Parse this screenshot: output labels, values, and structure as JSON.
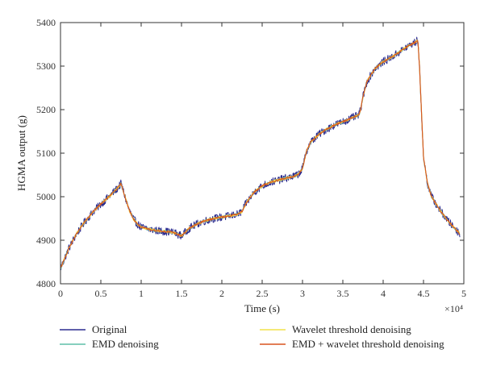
{
  "chart_data": {
    "type": "line",
    "xlabel": "Time (s)",
    "ylabel": "HGMA output (g)",
    "x_multiplier": "×10⁴",
    "xlim": [
      0,
      5
    ],
    "ylim": [
      4800,
      5400
    ],
    "xticks": [
      0,
      0.5,
      1,
      1.5,
      2,
      2.5,
      3,
      3.5,
      4,
      4.5,
      5
    ],
    "xtick_labels": [
      "0",
      "0.5",
      "1",
      "1.5",
      "2",
      "2.5",
      "3",
      "3.5",
      "4",
      "4.5",
      "5"
    ],
    "yticks": [
      4800,
      4900,
      5000,
      5100,
      5200,
      5300,
      5400
    ],
    "ytick_labels": [
      "4800",
      "4900",
      "5000",
      "5100",
      "5200",
      "5300",
      "5400"
    ],
    "grid": false,
    "legend_position": "bottom",
    "x": [
      0,
      0.1,
      0.2,
      0.3,
      0.4,
      0.5,
      0.6,
      0.7,
      0.75,
      0.8,
      0.85,
      0.9,
      0.95,
      1.0,
      1.1,
      1.2,
      1.3,
      1.4,
      1.5,
      1.6,
      1.7,
      1.8,
      1.9,
      2.0,
      2.1,
      2.2,
      2.25,
      2.3,
      2.4,
      2.5,
      2.6,
      2.7,
      2.8,
      2.9,
      2.95,
      3.0,
      3.05,
      3.1,
      3.2,
      3.3,
      3.4,
      3.5,
      3.6,
      3.7,
      3.72,
      3.75,
      3.8,
      3.9,
      4.0,
      4.1,
      4.2,
      4.3,
      4.4,
      4.43,
      4.45,
      4.5,
      4.55,
      4.6,
      4.7,
      4.8,
      4.9,
      4.95
    ],
    "series": [
      {
        "name": "Original",
        "color": "#2b2b8f",
        "noise": 9,
        "values": [
          4835,
          4880,
          4915,
          4942,
          4965,
          4983,
          5000,
          5018,
          5030,
          5000,
          4970,
          4950,
          4938,
          4930,
          4925,
          4922,
          4920,
          4918,
          4910,
          4928,
          4938,
          4945,
          4950,
          4953,
          4956,
          4960,
          4966,
          4985,
          5010,
          5025,
          5033,
          5038,
          5043,
          5047,
          5052,
          5065,
          5105,
          5125,
          5143,
          5155,
          5165,
          5172,
          5180,
          5188,
          5200,
          5230,
          5265,
          5295,
          5310,
          5320,
          5332,
          5345,
          5355,
          5360,
          5300,
          5090,
          5030,
          5000,
          4970,
          4945,
          4925,
          4915
        ]
      },
      {
        "name": "EMD denoising",
        "color": "#5fbfa8",
        "noise": 3,
        "values": [
          4835,
          4880,
          4915,
          4942,
          4965,
          4983,
          5000,
          5018,
          5030,
          5000,
          4970,
          4950,
          4938,
          4930,
          4925,
          4922,
          4920,
          4918,
          4910,
          4928,
          4938,
          4945,
          4950,
          4953,
          4956,
          4960,
          4966,
          4985,
          5010,
          5025,
          5033,
          5038,
          5043,
          5047,
          5052,
          5065,
          5105,
          5125,
          5143,
          5155,
          5165,
          5172,
          5180,
          5188,
          5200,
          5230,
          5265,
          5295,
          5310,
          5320,
          5332,
          5345,
          5355,
          5360,
          5300,
          5090,
          5030,
          5000,
          4970,
          4945,
          4925,
          4915
        ]
      },
      {
        "name": "Wavelet threshold denoising",
        "color": "#f2e24a",
        "noise": 3,
        "values": [
          4835,
          4880,
          4915,
          4942,
          4965,
          4983,
          5000,
          5018,
          5030,
          5000,
          4970,
          4950,
          4938,
          4930,
          4925,
          4922,
          4920,
          4918,
          4910,
          4928,
          4938,
          4945,
          4950,
          4953,
          4956,
          4960,
          4966,
          4985,
          5010,
          5025,
          5033,
          5038,
          5043,
          5047,
          5052,
          5065,
          5105,
          5125,
          5143,
          5155,
          5165,
          5172,
          5180,
          5188,
          5200,
          5230,
          5265,
          5295,
          5310,
          5320,
          5332,
          5345,
          5355,
          5360,
          5300,
          5090,
          5030,
          5000,
          4970,
          4945,
          4925,
          4915
        ]
      },
      {
        "name": "EMD + wavelet threshold denoising",
        "color": "#d9531e",
        "noise": 2,
        "values": [
          4835,
          4880,
          4915,
          4942,
          4965,
          4983,
          5000,
          5018,
          5030,
          5000,
          4970,
          4950,
          4938,
          4930,
          4925,
          4922,
          4920,
          4918,
          4910,
          4928,
          4938,
          4945,
          4950,
          4953,
          4956,
          4960,
          4966,
          4985,
          5010,
          5025,
          5033,
          5038,
          5043,
          5047,
          5052,
          5065,
          5105,
          5125,
          5143,
          5155,
          5165,
          5172,
          5180,
          5188,
          5200,
          5230,
          5265,
          5295,
          5310,
          5320,
          5332,
          5345,
          5355,
          5360,
          5300,
          5090,
          5030,
          5000,
          4970,
          4945,
          4925,
          4915
        ]
      }
    ]
  }
}
